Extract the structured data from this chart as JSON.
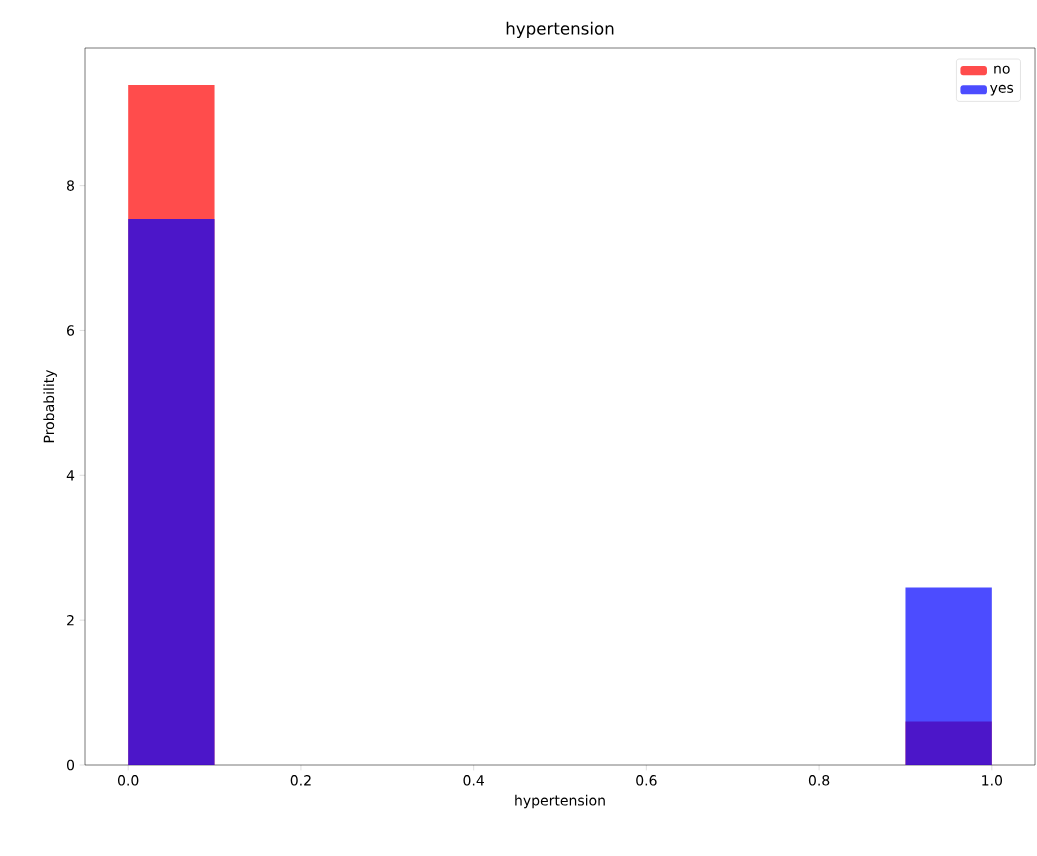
{
  "chart_data": {
    "type": "histogram",
    "title": "hypertension",
    "xlabel": "hypertension",
    "ylabel": "Probability",
    "bins": [
      0,
      0.1,
      0.2,
      0.3,
      0.4,
      0.5,
      0.6,
      0.7,
      0.8,
      0.9,
      1.0
    ],
    "series": [
      {
        "name": "no",
        "color": "#ff0000",
        "values": [
          9.39,
          0,
          0,
          0,
          0,
          0,
          0,
          0,
          0,
          0.6
        ]
      },
      {
        "name": "yes",
        "color": "#0000ff",
        "values": [
          7.54,
          0,
          0,
          0,
          0,
          0,
          0,
          0,
          0,
          2.45
        ]
      }
    ],
    "xlim": [
      -0.05,
      1.05
    ],
    "ylim": [
      0,
      9.9
    ],
    "xticks": [
      {
        "value": 0,
        "label": "0.0"
      },
      {
        "value": 0.2,
        "label": "0.2"
      },
      {
        "value": 0.4,
        "label": "0.4"
      },
      {
        "value": 0.6,
        "label": "0.6"
      },
      {
        "value": 0.8,
        "label": "0.8"
      },
      {
        "value": 1.0,
        "label": "1.0"
      }
    ],
    "yticks": [
      0,
      2,
      4,
      6,
      8
    ],
    "legend": "top right",
    "grid": false
  }
}
